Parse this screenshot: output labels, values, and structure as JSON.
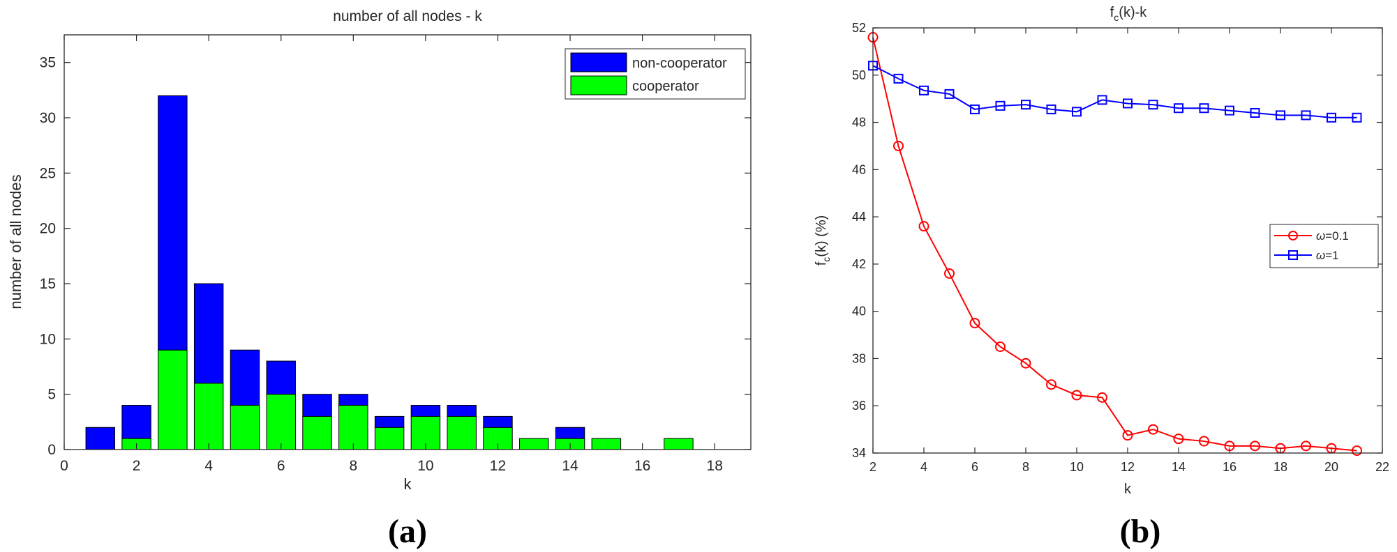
{
  "chart_data": [
    {
      "type": "bar",
      "stacked": true,
      "title": "number of all nodes - k",
      "xlabel": "k",
      "ylabel": "number of all nodes",
      "xlim": [
        0,
        19
      ],
      "ylim": [
        0,
        37.5
      ],
      "xticks": [
        0,
        2,
        4,
        6,
        8,
        10,
        12,
        14,
        16,
        18
      ],
      "yticks": [
        0,
        5,
        10,
        15,
        20,
        25,
        30,
        35
      ],
      "categories": [
        1,
        2,
        3,
        4,
        5,
        6,
        7,
        8,
        9,
        10,
        11,
        12,
        13,
        14,
        15,
        16,
        17
      ],
      "series": [
        {
          "name": "cooperator",
          "color": "#00ff00",
          "values": [
            0,
            1,
            9,
            6,
            4,
            5,
            3,
            4,
            2,
            3,
            3,
            2,
            1,
            1,
            1,
            0,
            1
          ]
        },
        {
          "name": "non-cooperator",
          "color": "#0000ff",
          "values": [
            2,
            3,
            23,
            9,
            5,
            3,
            2,
            1,
            1,
            1,
            1,
            1,
            0,
            1,
            0,
            0,
            0
          ]
        }
      ],
      "legend": {
        "position": "top-right",
        "order": [
          "non-cooperator",
          "cooperator"
        ]
      },
      "panel_label": "(a)"
    },
    {
      "type": "line",
      "title_main": "f",
      "title_sub": "c",
      "title_rest": "(k)-k",
      "xlabel": "k",
      "ylabel_main": "f",
      "ylabel_sub": "c",
      "ylabel_rest": "(k) (%)",
      "xlim": [
        2,
        22
      ],
      "ylim": [
        34,
        52
      ],
      "xticks": [
        2,
        4,
        6,
        8,
        10,
        12,
        14,
        16,
        18,
        20,
        22
      ],
      "yticks": [
        34,
        36,
        38,
        40,
        42,
        44,
        46,
        48,
        50,
        52
      ],
      "x": [
        2,
        3,
        4,
        5,
        6,
        7,
        8,
        9,
        10,
        11,
        12,
        13,
        14,
        15,
        16,
        17,
        18,
        19,
        20,
        21
      ],
      "series": [
        {
          "name": "ω=0.1",
          "legend_symbol": "ω",
          "legend_value": "=0.1",
          "color": "#ff0000",
          "marker": "circle",
          "values": [
            51.6,
            47.0,
            43.6,
            41.6,
            39.5,
            38.5,
            37.8,
            36.9,
            36.45,
            36.35,
            34.75,
            35.0,
            34.6,
            34.5,
            34.3,
            34.3,
            34.2,
            34.3,
            34.2,
            34.1
          ]
        },
        {
          "name": "ω=1",
          "legend_symbol": "ω",
          "legend_value": "=1",
          "color": "#0000ff",
          "marker": "square",
          "values": [
            50.4,
            49.85,
            49.35,
            49.2,
            48.55,
            48.7,
            48.75,
            48.55,
            48.45,
            48.95,
            48.8,
            48.75,
            48.6,
            48.6,
            48.5,
            48.4,
            48.3,
            48.3,
            48.2,
            48.2
          ]
        }
      ],
      "legend": {
        "position": "center-right"
      },
      "panel_label": "(b)"
    }
  ]
}
